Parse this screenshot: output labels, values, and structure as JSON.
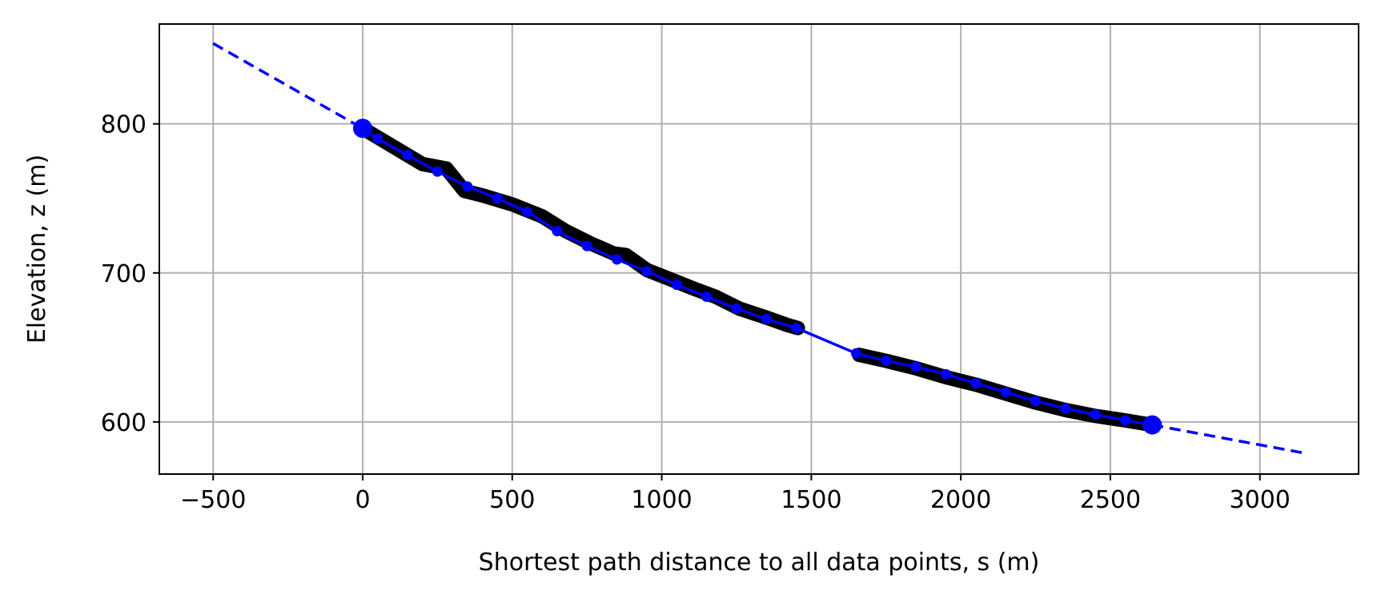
{
  "chart_data": {
    "type": "scatter",
    "xlabel": "Shortest path distance to all data points, s (m)",
    "ylabel": "Elevation, z (m)",
    "xlim": [
      -680,
      3330
    ],
    "ylim": [
      565,
      867
    ],
    "xticks": [
      -500,
      0,
      500,
      1000,
      1500,
      2000,
      2500,
      3000
    ],
    "yticks": [
      600,
      700,
      800
    ],
    "xtick_labels": [
      "−500",
      "0",
      "500",
      "1000",
      "1500",
      "2000",
      "2500",
      "3000"
    ],
    "ytick_labels": [
      "600",
      "700",
      "800"
    ],
    "grid": true,
    "legend": "none",
    "colors": {
      "data": "#000000",
      "fit": "#0000ff",
      "grid": "#b0b0b0"
    },
    "series": [
      {
        "style": "black thick scatter band",
        "segments": [
          [
            [
              0,
              797
            ],
            [
              100,
              785
            ],
            [
              200,
              773
            ],
            [
              280,
              770
            ],
            [
              300,
              765
            ],
            [
              340,
              755
            ],
            [
              400,
              752
            ],
            [
              500,
              746
            ],
            [
              600,
              738
            ],
            [
              680,
              728
            ],
            [
              760,
              720
            ],
            [
              840,
              713
            ],
            [
              880,
              712
            ],
            [
              950,
              702
            ],
            [
              1050,
              694
            ],
            [
              1100,
              690
            ],
            [
              1180,
              684
            ],
            [
              1260,
              676
            ],
            [
              1350,
              670
            ],
            [
              1420,
              665
            ],
            [
              1455,
              663
            ]
          ],
          [
            [
              1660,
              645
            ],
            [
              1750,
              641
            ],
            [
              1850,
              636
            ],
            [
              1950,
              630
            ],
            [
              2050,
              625
            ],
            [
              2150,
              619
            ],
            [
              2250,
              613
            ],
            [
              2350,
              608
            ],
            [
              2450,
              604
            ],
            [
              2550,
              601
            ],
            [
              2640,
              598
            ]
          ]
        ]
      },
      {
        "style": "blue solid line with node markers",
        "segments": [
          [
            [
              0,
              797
            ],
            [
              50,
              790
            ],
            [
              150,
              779
            ],
            [
              250,
              768
            ],
            [
              350,
              758
            ],
            [
              450,
              750
            ],
            [
              550,
              741
            ],
            [
              650,
              728
            ],
            [
              750,
              718
            ],
            [
              850,
              709
            ],
            [
              950,
              701
            ],
            [
              1050,
              692
            ],
            [
              1150,
              684
            ],
            [
              1250,
              676
            ],
            [
              1350,
              669
            ],
            [
              1450,
              663
            ]
          ],
          [
            [
              1450,
              663
            ],
            [
              1650,
              646
            ]
          ],
          [
            [
              1650,
              646
            ],
            [
              1750,
              641
            ],
            [
              1850,
              637
            ],
            [
              1950,
              632
            ],
            [
              2050,
              626
            ],
            [
              2150,
              620
            ],
            [
              2250,
              614
            ],
            [
              2350,
              609
            ],
            [
              2450,
              605
            ],
            [
              2550,
              601
            ],
            [
              2640,
              598
            ]
          ]
        ],
        "markers": [
          [
            50,
            790
          ],
          [
            150,
            779
          ],
          [
            250,
            768
          ],
          [
            350,
            758
          ],
          [
            450,
            750
          ],
          [
            550,
            741
          ],
          [
            650,
            728
          ],
          [
            750,
            718
          ],
          [
            850,
            709
          ],
          [
            950,
            701
          ],
          [
            1050,
            692
          ],
          [
            1150,
            684
          ],
          [
            1250,
            676
          ],
          [
            1350,
            669
          ],
          [
            1450,
            663
          ],
          [
            1650,
            646
          ],
          [
            1750,
            641
          ],
          [
            1850,
            637
          ],
          [
            1950,
            632
          ],
          [
            2050,
            626
          ],
          [
            2150,
            620
          ],
          [
            2250,
            614
          ],
          [
            2350,
            609
          ],
          [
            2450,
            605
          ],
          [
            2550,
            601
          ]
        ],
        "endpoints": [
          [
            0,
            797
          ],
          [
            2640,
            598
          ]
        ]
      },
      {
        "style": "blue dashed extrapolation",
        "segments": [
          [
            [
              -500,
              854
            ],
            [
              0,
              797
            ]
          ],
          [
            [
              2640,
              598
            ],
            [
              3150,
              579
            ]
          ]
        ]
      }
    ]
  }
}
